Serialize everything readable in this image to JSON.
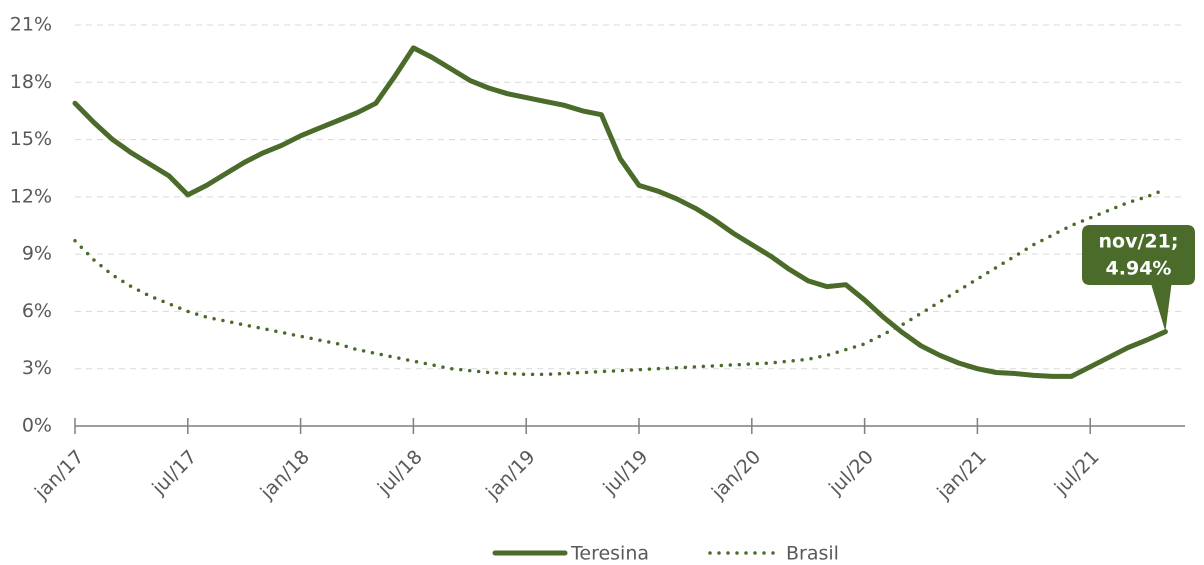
{
  "chart_data": {
    "type": "line",
    "categories": [
      "jan/17",
      null,
      null,
      null,
      null,
      null,
      "jul/17",
      null,
      null,
      null,
      null,
      null,
      "jan/18",
      null,
      null,
      null,
      null,
      null,
      "jul/18",
      null,
      null,
      null,
      null,
      null,
      "jan/19",
      null,
      null,
      null,
      null,
      null,
      "jul/19",
      null,
      null,
      null,
      null,
      null,
      "jan/20",
      null,
      null,
      null,
      null,
      null,
      "jul/20",
      null,
      null,
      null,
      null,
      null,
      "jan/21",
      null,
      null,
      null,
      null,
      null,
      "jul/21",
      null,
      null,
      null,
      null
    ],
    "series": [
      {
        "name": "Teresina",
        "color": "#4a6b2a",
        "style": "solid",
        "values": [
          16.9,
          15.9,
          15.0,
          14.3,
          13.7,
          13.1,
          12.1,
          12.6,
          13.2,
          13.8,
          14.3,
          14.7,
          15.2,
          15.6,
          16.0,
          16.4,
          16.9,
          18.3,
          19.8,
          19.3,
          18.7,
          18.1,
          17.7,
          17.4,
          17.2,
          17.0,
          16.8,
          16.5,
          16.3,
          14.0,
          12.6,
          12.3,
          11.9,
          11.4,
          10.8,
          10.1,
          9.5,
          8.9,
          8.2,
          7.6,
          7.3,
          7.4,
          6.6,
          5.7,
          4.9,
          4.2,
          3.7,
          3.3,
          3.0,
          2.8,
          2.75,
          2.65,
          2.6,
          2.6,
          3.1,
          3.6,
          4.1,
          4.5,
          4.94
        ]
      },
      {
        "name": "Brasil",
        "color": "#4a6b2a",
        "style": "dotted",
        "values": [
          9.7,
          8.7,
          7.9,
          7.3,
          6.8,
          6.4,
          6.0,
          5.7,
          5.5,
          5.3,
          5.1,
          4.9,
          4.7,
          4.5,
          4.3,
          4.0,
          3.8,
          3.6,
          3.4,
          3.2,
          3.0,
          2.9,
          2.8,
          2.75,
          2.7,
          2.7,
          2.75,
          2.8,
          2.85,
          2.9,
          2.95,
          3.0,
          3.05,
          3.1,
          3.15,
          3.2,
          3.25,
          3.3,
          3.4,
          3.5,
          3.7,
          4.0,
          4.3,
          4.8,
          5.3,
          5.9,
          6.5,
          7.1,
          7.7,
          8.3,
          8.9,
          9.5,
          10.0,
          10.5,
          10.9,
          11.3,
          11.7,
          12.0,
          12.4
        ]
      }
    ],
    "annotation": [
      "nov/21;",
      "4.94%"
    ],
    "ylim": [
      0,
      21
    ],
    "yticks": [
      {
        "value": 0,
        "label": "0%"
      },
      {
        "value": 3,
        "label": "3%"
      },
      {
        "value": 6,
        "label": "6%"
      },
      {
        "value": 9,
        "label": "9%"
      },
      {
        "value": 12,
        "label": "12%"
      },
      {
        "value": 15,
        "label": "15%"
      },
      {
        "value": 18,
        "label": "18%"
      },
      {
        "value": 21,
        "label": "21%"
      }
    ],
    "grid": true
  }
}
